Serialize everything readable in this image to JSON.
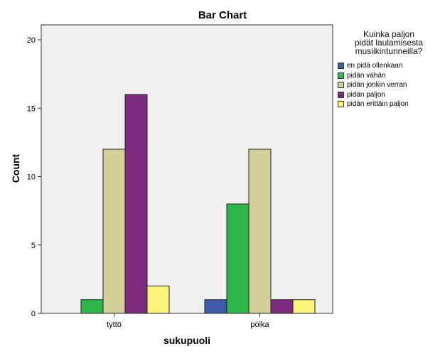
{
  "chart_data": {
    "type": "bar",
    "title": "Bar Chart",
    "xlabel": "sukupuoli",
    "ylabel": "Count",
    "categories": [
      "tyttö",
      "poika"
    ],
    "ylim": [
      0,
      20
    ],
    "yticks": [
      0,
      5,
      10,
      15,
      20
    ],
    "grid": false,
    "legend_position": "right",
    "legend_title": [
      "Kuinka paljon",
      "pidät laulamisesta",
      "musiikintunneilla?"
    ],
    "series": [
      {
        "name": "en pidä ollenkaan",
        "color": "#3e5aa8",
        "values": [
          0,
          1
        ]
      },
      {
        "name": "pidän vähän",
        "color": "#2eb84b",
        "values": [
          1,
          8
        ]
      },
      {
        "name": "pidän jonkin verran",
        "color": "#d4d09a",
        "values": [
          12,
          12
        ]
      },
      {
        "name": "pidän paljon",
        "color": "#7b2a7d",
        "values": [
          16,
          1
        ]
      },
      {
        "name": "pidän erittäin paljon",
        "color": "#fbf67a",
        "values": [
          2,
          1
        ]
      }
    ],
    "plot_background": "#f0f0f0"
  }
}
